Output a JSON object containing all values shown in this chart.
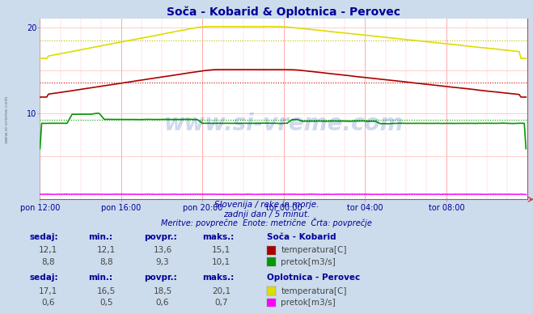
{
  "title": "Soča - Kobarid & Oplotnica - Perovec",
  "subtitle1": "Slovenija / reke in morje.",
  "subtitle2": "zadnji dan / 5 minut.",
  "subtitle3": "Meritve: povprečne  Enote: metrične  Črta: povprečje",
  "bg_color": "#ccdcec",
  "plot_bg_color": "#ffffff",
  "title_color": "#000099",
  "text_color": "#000099",
  "data_color": "#444444",
  "xtick_labels": [
    "pon 12:00",
    "pon 16:00",
    "pon 20:00",
    "tor 00:00",
    "tor 04:00",
    "tor 08:00"
  ],
  "xtick_positions": [
    0,
    48,
    96,
    144,
    192,
    240
  ],
  "n_points": 288,
  "ylim": [
    0,
    21
  ],
  "soca_temp_avg": 13.6,
  "soca_flow_avg": 9.3,
  "oplot_temp_avg": 18.5,
  "oplot_flow_avg": 0.6,
  "color_soca_temp": "#aa0000",
  "color_soca_flow": "#009900",
  "color_oplot_temp": "#dddd00",
  "color_oplot_flow": "#ff00ff",
  "color_avg_soca_temp": "#cc0000",
  "color_avg_soca_flow": "#009900",
  "color_avg_oplot_temp": "#bbbb00",
  "color_avg_oplot_flow": "#cc00cc",
  "watermark": "www.si-vreme.com",
  "soca_name": "Soča - Kobarid",
  "oplot_name": "Oplotnica - Perovec",
  "header_cols": [
    "sedaj:",
    "min.:",
    "povpr.:",
    "maks.:"
  ],
  "soca_temp_row": [
    "12,1",
    "12,1",
    "13,6",
    "15,1",
    "temperatura[C]"
  ],
  "soca_flow_row": [
    "8,8",
    "8,8",
    "9,3",
    "10,1",
    "pretok[m3/s]"
  ],
  "oplot_temp_row": [
    "17,1",
    "16,5",
    "18,5",
    "20,1",
    "temperatura[C]"
  ],
  "oplot_flow_row": [
    "0,6",
    "0,5",
    "0,6",
    "0,7",
    "pretok[m3/s]"
  ]
}
